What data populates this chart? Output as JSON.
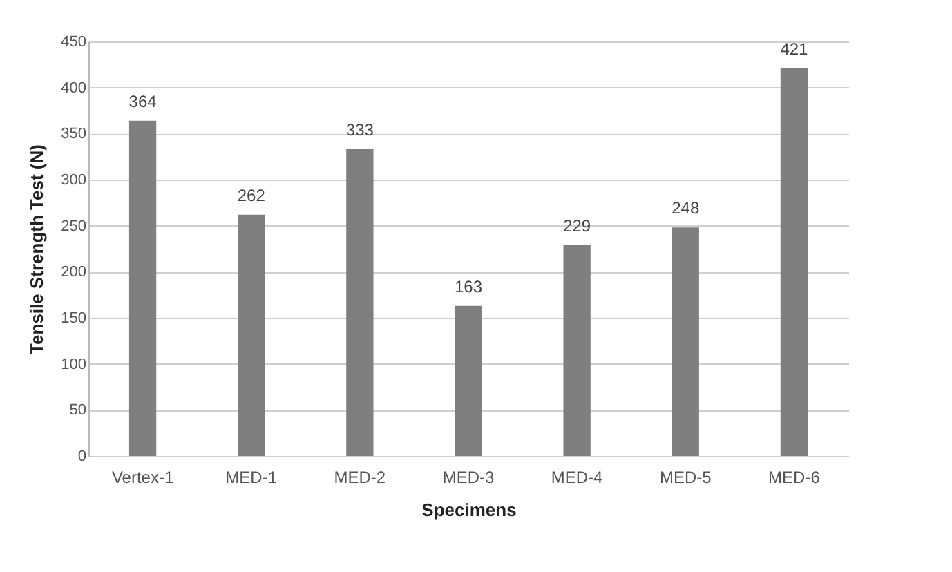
{
  "chart_data": {
    "type": "bar",
    "xlabel": "Specimens",
    "ylabel": "Tensile Strength Test (N)",
    "categories": [
      "Vertex-1",
      "MED-1",
      "MED-2",
      "MED-3",
      "MED-4",
      "MED-5",
      "MED-6"
    ],
    "values": [
      364,
      262,
      333,
      163,
      229,
      248,
      421
    ],
    "color": "#7f7f7f",
    "ylim": [
      0,
      450
    ],
    "yticks": [
      0,
      50,
      100,
      150,
      200,
      250,
      300,
      350,
      400,
      450
    ],
    "grid": "y",
    "data_labels": true
  }
}
